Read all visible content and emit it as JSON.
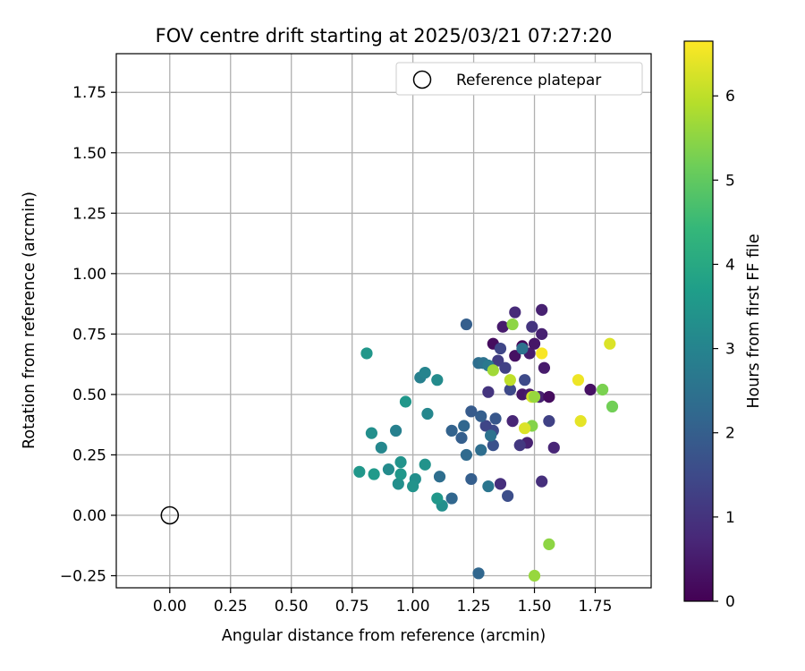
{
  "chart_data": {
    "type": "scatter",
    "title": "FOV centre drift starting at 2025/03/21 07:27:20",
    "xlabel": "Angular distance from reference (arcmin)",
    "ylabel": "Rotation from reference (arcmin)",
    "xlim": [
      -0.22,
      1.98
    ],
    "ylim": [
      -0.3,
      1.91
    ],
    "xticks": [
      0.0,
      0.25,
      0.5,
      0.75,
      1.0,
      1.25,
      1.5,
      1.75
    ],
    "xtick_labels": [
      "0.00",
      "0.25",
      "0.50",
      "0.75",
      "1.00",
      "1.25",
      "1.50",
      "1.75"
    ],
    "yticks": [
      -0.25,
      0.0,
      0.25,
      0.5,
      0.75,
      1.0,
      1.25,
      1.5,
      1.75
    ],
    "ytick_labels": [
      "−0.25",
      "0.00",
      "0.25",
      "0.50",
      "0.75",
      "1.00",
      "1.25",
      "1.50",
      "1.75"
    ],
    "grid": true,
    "legend": {
      "placement": "top-right",
      "entries": [
        "Reference platepar"
      ]
    },
    "reference_point": {
      "x": 0.0,
      "y": 0.0
    },
    "colorbar": {
      "label": "Hours from first FF file",
      "min": 0,
      "max": 6.65,
      "ticks": [
        0,
        1,
        2,
        3,
        4,
        5,
        6
      ],
      "tick_labels": [
        "0",
        "1",
        "2",
        "3",
        "4",
        "5",
        "6"
      ],
      "colormap": "viridis"
    },
    "colormap_stops": [
      "#440154",
      "#482878",
      "#3e4989",
      "#31688e",
      "#26828e",
      "#1f9e89",
      "#35b779",
      "#6ece58",
      "#b5de2b",
      "#fde725"
    ],
    "series": [
      {
        "points": [
          [
            1.4,
            0.52,
            0.3
          ],
          [
            1.45,
            0.5,
            0.4
          ],
          [
            1.48,
            0.5,
            0.5
          ],
          [
            1.52,
            0.49,
            0.6
          ],
          [
            1.56,
            0.49,
            0.2
          ],
          [
            1.42,
            0.66,
            0.3
          ],
          [
            1.45,
            0.7,
            0.1
          ],
          [
            1.48,
            0.67,
            0.5
          ],
          [
            1.5,
            0.71,
            0.4
          ],
          [
            1.53,
            0.75,
            0.6
          ],
          [
            1.37,
            0.78,
            0.5
          ],
          [
            1.33,
            0.71,
            0.2
          ],
          [
            1.42,
            0.84,
            0.8
          ],
          [
            1.53,
            0.85,
            0.6
          ],
          [
            1.49,
            0.78,
            1.0
          ],
          [
            1.73,
            0.52,
            0.3
          ],
          [
            1.54,
            0.61,
            0.5
          ],
          [
            1.53,
            0.14,
            0.9
          ],
          [
            1.58,
            0.28,
            0.7
          ],
          [
            1.56,
            0.39,
            1.3
          ],
          [
            1.47,
            0.3,
            0.6
          ],
          [
            1.44,
            0.29,
            1.1
          ],
          [
            1.41,
            0.39,
            0.7
          ],
          [
            1.36,
            0.13,
            0.9
          ],
          [
            1.31,
            0.51,
            1.0
          ],
          [
            1.35,
            0.64,
            1.2
          ],
          [
            1.38,
            0.61,
            1.3
          ],
          [
            1.36,
            0.69,
            1.4
          ],
          [
            1.4,
            0.52,
            1.5
          ],
          [
            1.46,
            0.56,
            1.5
          ],
          [
            1.39,
            0.08,
            1.6
          ],
          [
            1.33,
            0.29,
            1.7
          ],
          [
            1.33,
            0.35,
            1.5
          ],
          [
            1.3,
            0.37,
            1.4
          ],
          [
            1.34,
            0.4,
            1.8
          ],
          [
            1.28,
            0.41,
            2.0
          ],
          [
            1.24,
            0.43,
            1.9
          ],
          [
            1.21,
            0.37,
            2.2
          ],
          [
            1.22,
            0.25,
            2.3
          ],
          [
            1.2,
            0.32,
            2.0
          ],
          [
            1.16,
            0.35,
            2.1
          ],
          [
            1.24,
            0.15,
            2.0
          ],
          [
            1.16,
            0.07,
            2.2
          ],
          [
            1.11,
            0.16,
            2.4
          ],
          [
            1.28,
            0.27,
            2.4
          ],
          [
            1.32,
            0.33,
            2.5
          ],
          [
            1.31,
            0.12,
            2.6
          ],
          [
            1.27,
            0.63,
            2.4
          ],
          [
            1.29,
            0.63,
            2.5
          ],
          [
            1.31,
            0.62,
            2.7
          ],
          [
            1.22,
            0.79,
            2.0
          ],
          [
            1.45,
            0.69,
            2.5
          ],
          [
            1.27,
            -0.24,
            2.2
          ],
          [
            1.03,
            0.57,
            2.9
          ],
          [
            1.05,
            0.59,
            3.0
          ],
          [
            1.06,
            0.42,
            3.1
          ],
          [
            1.1,
            0.56,
            3.2
          ],
          [
            1.12,
            0.04,
            3.3
          ],
          [
            1.1,
            0.07,
            3.5
          ],
          [
            1.05,
            0.21,
            3.4
          ],
          [
            0.97,
            0.47,
            3.5
          ],
          [
            1.01,
            0.15,
            3.3
          ],
          [
            1.0,
            0.12,
            3.4
          ],
          [
            0.93,
            0.35,
            2.9
          ],
          [
            0.9,
            0.19,
            3.2
          ],
          [
            0.94,
            0.13,
            3.3
          ],
          [
            0.95,
            0.22,
            3.4
          ],
          [
            0.95,
            0.17,
            3.5
          ],
          [
            0.87,
            0.28,
            3.1
          ],
          [
            0.83,
            0.34,
            3.3
          ],
          [
            0.84,
            0.17,
            3.6
          ],
          [
            0.78,
            0.18,
            3.5
          ],
          [
            0.81,
            0.67,
            3.5
          ],
          [
            1.41,
            0.79,
            5.5
          ],
          [
            1.33,
            0.6,
            5.7
          ],
          [
            1.4,
            0.56,
            6.0
          ],
          [
            1.49,
            0.49,
            6.2
          ],
          [
            1.5,
            0.49,
            5.6
          ],
          [
            1.49,
            0.37,
            5.4
          ],
          [
            1.46,
            0.36,
            6.3
          ],
          [
            1.53,
            0.67,
            6.6
          ],
          [
            1.68,
            0.56,
            6.5
          ],
          [
            1.69,
            0.39,
            6.4
          ],
          [
            1.81,
            0.71,
            6.3
          ],
          [
            1.78,
            0.52,
            5.3
          ],
          [
            1.82,
            0.45,
            5.2
          ],
          [
            1.56,
            -0.12,
            5.5
          ],
          [
            1.5,
            -0.25,
            5.6
          ]
        ]
      }
    ]
  }
}
